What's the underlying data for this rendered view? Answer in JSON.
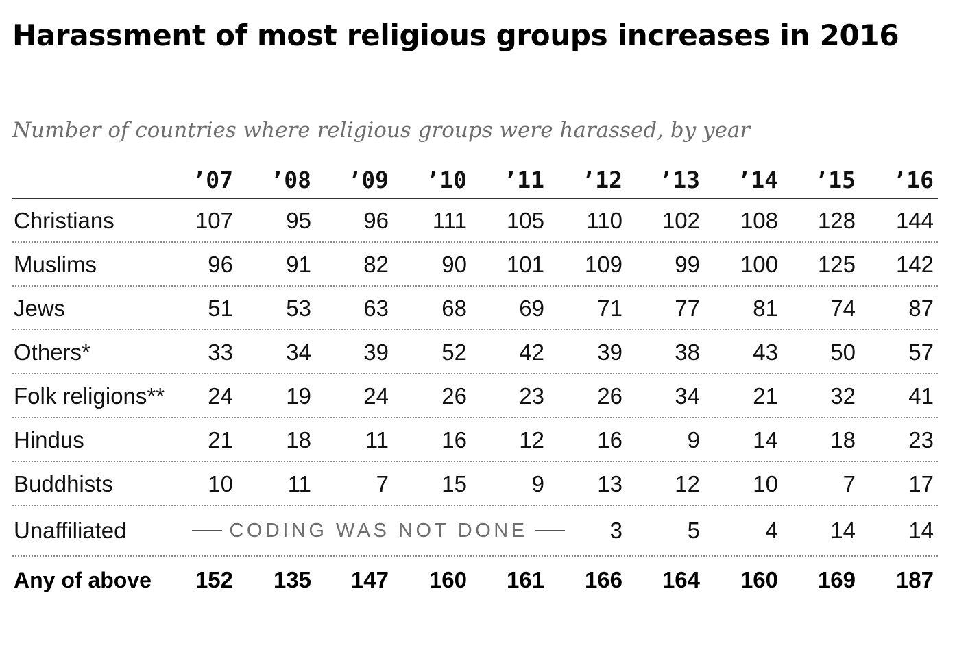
{
  "chart_data": {
    "type": "table",
    "title": "Harassment of most religious groups increases in 2016",
    "subtitle": "Number of countries where religious groups were harassed, by year",
    "columns": [
      "’07",
      "’08",
      "’09",
      "’10",
      "’11",
      "’12",
      "’13",
      "’14",
      "’15",
      "’16"
    ],
    "rows": [
      {
        "label": "Christians",
        "values": [
          "107",
          "95",
          "96",
          "111",
          "105",
          "110",
          "102",
          "108",
          "128",
          "144"
        ]
      },
      {
        "label": "Muslims",
        "values": [
          "96",
          "91",
          "82",
          "90",
          "101",
          "109",
          "99",
          "100",
          "125",
          "142"
        ]
      },
      {
        "label": "Jews",
        "values": [
          "51",
          "53",
          "63",
          "68",
          "69",
          "71",
          "77",
          "81",
          "74",
          "87"
        ]
      },
      {
        "label": "Others*",
        "values": [
          "33",
          "34",
          "39",
          "52",
          "42",
          "39",
          "38",
          "43",
          "50",
          "57"
        ]
      },
      {
        "label": "Folk religions**",
        "values": [
          "24",
          "19",
          "24",
          "26",
          "23",
          "26",
          "34",
          "21",
          "32",
          "41"
        ]
      },
      {
        "label": "Hindus",
        "values": [
          "21",
          "18",
          "11",
          "16",
          "12",
          "16",
          "9",
          "14",
          "18",
          "23"
        ]
      },
      {
        "label": "Buddhists",
        "values": [
          "10",
          "11",
          "7",
          "15",
          "9",
          "13",
          "12",
          "10",
          "7",
          "17"
        ]
      }
    ],
    "unaffiliated": {
      "label": "Unaffiliated",
      "note": "CODING WAS NOT DONE",
      "values": [
        "3",
        "5",
        "4",
        "14",
        "14"
      ]
    },
    "total": {
      "label": "Any of above",
      "values": [
        "152",
        "135",
        "147",
        "160",
        "161",
        "166",
        "164",
        "160",
        "169",
        "187"
      ]
    }
  }
}
